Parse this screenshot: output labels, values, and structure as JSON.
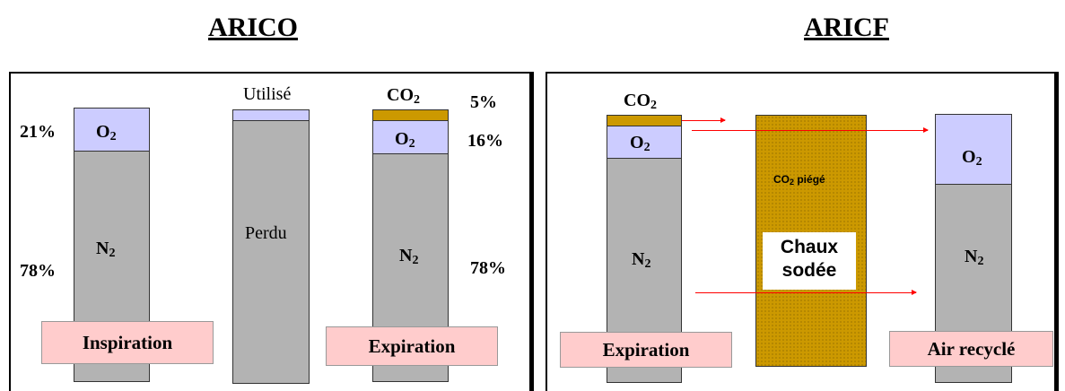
{
  "left_panel": {
    "title": "ARICO",
    "col1": {
      "o2": "O",
      "o2_sub": "2",
      "n2": "N",
      "n2_sub": "2",
      "pct_o2": "21%",
      "pct_n2": "78%",
      "box": "Inspiration"
    },
    "col2": {
      "top": "Utilisé",
      "middle": "Perdu"
    },
    "col3": {
      "co2": "CO",
      "co2_sub": "2",
      "o2": "O",
      "o2_sub": "2",
      "n2": "N",
      "n2_sub": "2",
      "pct_co2": "5%",
      "pct_o2": "16%",
      "pct_n2": "78%",
      "box": "Expiration"
    }
  },
  "right_panel": {
    "title": "ARICF",
    "col1": {
      "co2": "CO",
      "co2_sub": "2",
      "o2": "O",
      "o2_sub": "2",
      "n2": "N",
      "n2_sub": "2",
      "box": "Expiration"
    },
    "col2": {
      "trapped": "CO",
      "trapped_sub": "2",
      "trapped_rest": " piégé",
      "chaux_line1": "Chaux",
      "chaux_line2": "sodée"
    },
    "col3": {
      "o2": "O",
      "o2_sub": "2",
      "n2": "N",
      "n2_sub": "2",
      "box": "Air recyclé"
    }
  },
  "colors": {
    "n2": "#b3b3b3",
    "o2": "#ccccff",
    "co2": "#cc9900",
    "box": "#ffcccc",
    "arrow": "#ff0000"
  }
}
